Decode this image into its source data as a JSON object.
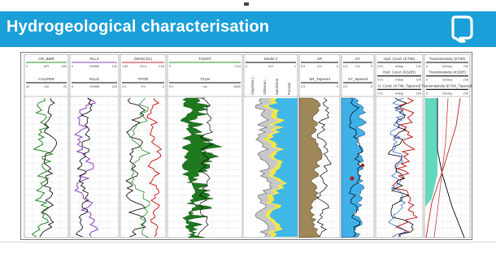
{
  "slide": {
    "title": "Hydrogeological characterisation",
    "colors": {
      "band": "#1a9fd8",
      "title": "#ffffff"
    },
    "logo_icon": "q-logo-icon"
  },
  "log_panel": {
    "tracks": [
      {
        "headers": [
          {
            "name": "GR_BMR",
            "min": "0",
            "unit": "API",
            "max": "400",
            "color": "#2a8a2a"
          },
          {
            "name": "CALIPER",
            "min": "10",
            "unit": "CM",
            "max": "20",
            "color": "#000000"
          }
        ]
      },
      {
        "headers": [
          {
            "name": "RLL3",
            "min": "0",
            "unit": "OHMM",
            "max": "100",
            "color": "#8a3fbf"
          },
          {
            "name": "RLLD",
            "min": "0",
            "unit": "OHMM",
            "max": "100",
            "color": "#000000"
          }
        ]
      },
      {
        "headers": [
          {
            "name": "DEN(CDL)",
            "min": "1.80",
            "unit": "G/C3",
            "max": "2.65",
            "color": "#d02020"
          },
          {
            "name": "TPOR",
            "min": "0.0",
            "unit": "V/V",
            "max": "0",
            "color": "#000000"
          }
        ]
      },
      {
        "headers": [
          {
            "name": "T2DIST",
            "min": "0",
            "unit": "",
            "max": "0.04",
            "color": "#2a8a2a"
          },
          {
            "name": "T2LM",
            "min": "0.0",
            "unit": "ms",
            "max": "5000",
            "color": "#000000"
          }
        ]
      },
      {
        "headers": [
          {
            "name": "Model 2",
            "min": "0",
            "unit": "V/V",
            "max": "1",
            "color": "#000000"
          }
        ],
        "side_labels": [
          "Claystone (...",
          "Siltstone (...",
          "Sandstone",
          "Porosity"
        ]
      },
      {
        "headers": [
          {
            "name": "SR",
            "min": "0.5",
            "unit": "V/V",
            "max": "0",
            "color": "#000000"
          },
          {
            "name": "SR_Tapered",
            "min": "0.5",
            "unit": "",
            "max": "0",
            "color": "#000000"
          }
        ]
      },
      {
        "headers": [
          {
            "name": "SY",
            "min": "0.5",
            "unit": "V/V",
            "max": "0",
            "color": "#000000"
          },
          {
            "name": "SY_tapered",
            "min": "0.5",
            "unit": "",
            "max": "0",
            "color": "#000000"
          }
        ]
      },
      {
        "headers": [
          {
            "name": "Hyd. Cond. (KTIM)",
            "min": "0.01",
            "unit": "m/day",
            "max": "100",
            "color": "#000000"
          },
          {
            "name": "Hyd. Cond. (KSDR)",
            "min": "0.01",
            "unit": "m/day",
            "max": "100",
            "color": "#000000"
          },
          {
            "name": "H. Cond. (KTIM_Tapered)",
            "min": "0.01",
            "unit": "m/day",
            "max": "100",
            "color": "#000000"
          }
        ]
      },
      {
        "headers": [
          {
            "name": "Transmissivity (KTIM)",
            "min": "0",
            "unit": "m2/day",
            "max": "230",
            "color": "#000000"
          },
          {
            "name": "Transmissivity (KSDR)",
            "min": "0",
            "unit": "m2/day",
            "max": "230",
            "color": "#000000"
          },
          {
            "name": "Transmissivity (KTIM_Tapered)",
            "min": "0",
            "unit": "m2/day",
            "max": "230",
            "color": "#000000"
          }
        ]
      }
    ],
    "fill_colors": {
      "gamma": "#2a8a2a",
      "resistivity": "#8a3fbf",
      "density": "#d02020",
      "t2": "#1f7a1f",
      "claystone": "#ffffff",
      "siltstone": "#c8c8c8",
      "sandstone": "#f5e642",
      "porosity": "#3fb8e8",
      "sr_fill": "#a0875a",
      "sy_fill": "#3fb0e8",
      "transmissivity_fill": "#63d8c0"
    }
  }
}
